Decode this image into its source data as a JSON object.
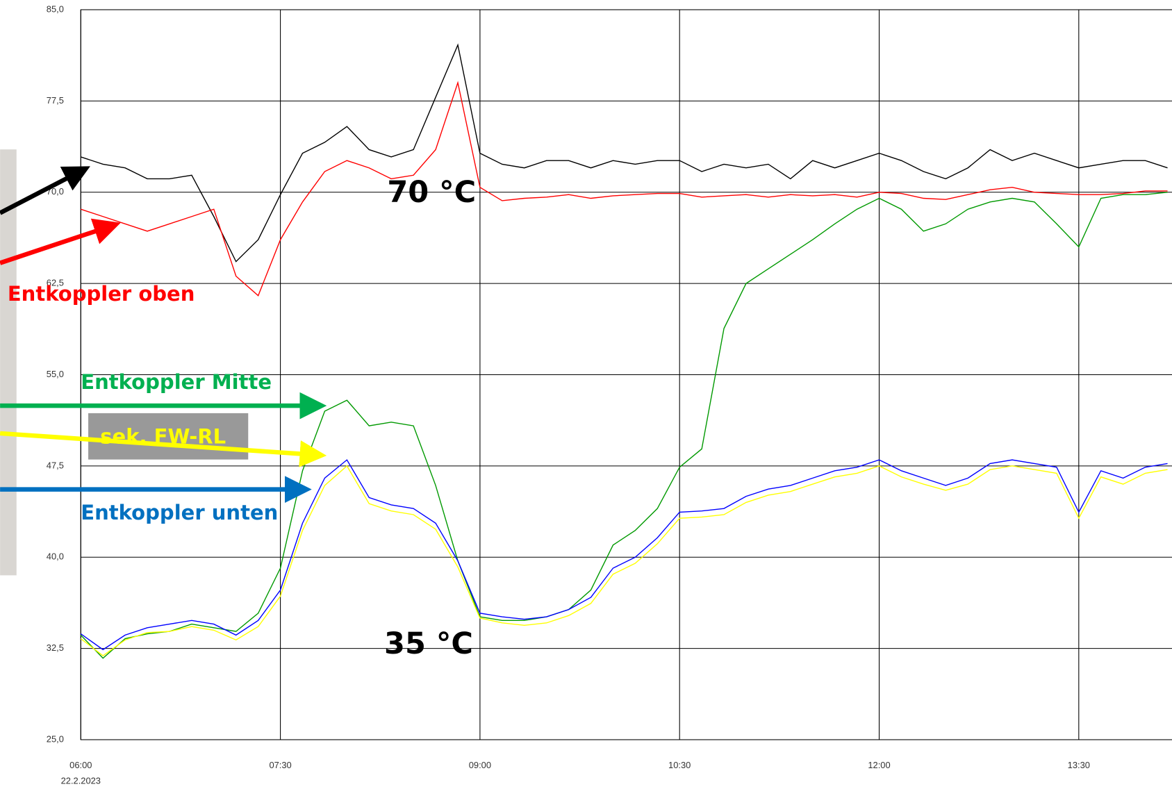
{
  "chart_data": {
    "type": "line",
    "x_date_label": "22.2.2023",
    "xlim": [
      "06:00",
      "14:12"
    ],
    "xticks": [
      "06:00",
      "07:30",
      "09:00",
      "10:30",
      "12:00",
      "13:30"
    ],
    "ylim": [
      25,
      85
    ],
    "yticks": [
      {
        "value": 25,
        "label": "25,0"
      },
      {
        "value": 32.5,
        "label": "32,5"
      },
      {
        "value": 40,
        "label": "40,0"
      },
      {
        "value": 47.5,
        "label": "47,5"
      },
      {
        "value": 55,
        "label": "55,0"
      },
      {
        "value": 62.5,
        "label": "62,5"
      },
      {
        "value": 70,
        "label": "70,0"
      },
      {
        "value": 77.5,
        "label": "77,5"
      },
      {
        "value": 85,
        "label": "85,0"
      }
    ],
    "grid": true,
    "x": [
      "06:00",
      "06:10",
      "06:20",
      "06:30",
      "06:40",
      "06:50",
      "07:00",
      "07:10",
      "07:20",
      "07:30",
      "07:40",
      "07:50",
      "08:00",
      "08:10",
      "08:20",
      "08:30",
      "08:40",
      "08:50",
      "09:00",
      "09:10",
      "09:20",
      "09:30",
      "09:40",
      "09:50",
      "10:00",
      "10:10",
      "10:20",
      "10:30",
      "10:40",
      "10:50",
      "11:00",
      "11:10",
      "11:20",
      "11:30",
      "11:40",
      "11:50",
      "12:00",
      "12:10",
      "12:20",
      "12:30",
      "12:40",
      "12:50",
      "13:00",
      "13:10",
      "13:20",
      "13:30",
      "13:40",
      "13:50",
      "14:00",
      "14:10"
    ],
    "series": [
      {
        "color": "#000000",
        "values": [
          72.9,
          72.3,
          72.0,
          71.1,
          71.1,
          71.4,
          68.0,
          64.3,
          66.1,
          69.8,
          73.2,
          74.1,
          75.4,
          73.5,
          72.9,
          73.5,
          77.8,
          82.1,
          73.2,
          72.3,
          72.0,
          72.6,
          72.6,
          72.0,
          72.6,
          72.3,
          72.6,
          72.6,
          71.7,
          72.3,
          72.0,
          72.3,
          71.1,
          72.6,
          72.0,
          72.6,
          73.2,
          72.6,
          71.7,
          71.1,
          72.0,
          73.5,
          72.6,
          73.2,
          72.6,
          72.0,
          72.3,
          72.6,
          72.6,
          72.0
        ]
      },
      {
        "name": "Entkoppler oben",
        "color": "#ff0000",
        "label_color": "#ff0000",
        "values": [
          68.6,
          68.0,
          67.4,
          66.8,
          67.4,
          68.0,
          68.6,
          63.1,
          61.5,
          66.1,
          69.2,
          71.7,
          72.6,
          72.0,
          71.1,
          71.4,
          73.5,
          79.0,
          70.4,
          69.3,
          69.5,
          69.6,
          69.8,
          69.5,
          69.7,
          69.8,
          69.9,
          69.9,
          69.6,
          69.7,
          69.8,
          69.6,
          69.8,
          69.7,
          69.8,
          69.6,
          70.0,
          69.9,
          69.5,
          69.4,
          69.8,
          70.2,
          70.4,
          70.0,
          69.9,
          69.8,
          69.8,
          69.9,
          70.1,
          70.1
        ]
      },
      {
        "name": "Entkoppler Mitte",
        "color": "#009900",
        "label_color": "#00b050",
        "values": [
          33.6,
          31.7,
          33.3,
          33.7,
          33.9,
          34.5,
          34.2,
          33.9,
          35.4,
          39.1,
          47.1,
          52.0,
          52.9,
          50.8,
          51.1,
          50.8,
          45.9,
          39.7,
          35.1,
          34.8,
          34.8,
          35.1,
          35.7,
          37.3,
          41.0,
          42.2,
          44.0,
          47.4,
          48.9,
          58.8,
          62.5,
          63.7,
          64.9,
          66.1,
          67.4,
          68.6,
          69.5,
          68.6,
          66.8,
          67.4,
          68.6,
          69.2,
          69.5,
          69.2,
          67.4,
          65.5,
          69.5,
          69.8,
          69.8,
          70.0
        ]
      },
      {
        "name": "sek. FW-RL",
        "color": "#ffff00",
        "label_color": "#ffff00",
        "values": [
          33.3,
          31.9,
          33.2,
          33.8,
          33.9,
          34.3,
          34.0,
          33.2,
          34.3,
          36.8,
          42.2,
          45.9,
          47.5,
          44.4,
          43.8,
          43.5,
          42.3,
          39.2,
          35.0,
          34.6,
          34.4,
          34.6,
          35.2,
          36.2,
          38.6,
          39.5,
          41.1,
          43.2,
          43.3,
          43.5,
          44.5,
          45.1,
          45.4,
          46.0,
          46.6,
          46.9,
          47.5,
          46.6,
          46.0,
          45.5,
          46.0,
          47.2,
          47.5,
          47.2,
          46.9,
          43.2,
          46.6,
          46.0,
          46.9,
          47.2
        ]
      },
      {
        "name": "Entkoppler unten",
        "color": "#0000ff",
        "label_color": "#0070c0",
        "values": [
          33.7,
          32.4,
          33.6,
          34.2,
          34.5,
          34.8,
          34.5,
          33.6,
          34.8,
          37.3,
          42.8,
          46.5,
          48.0,
          44.9,
          44.3,
          44.0,
          42.8,
          39.7,
          35.4,
          35.1,
          34.9,
          35.1,
          35.7,
          36.7,
          39.1,
          40.0,
          41.6,
          43.7,
          43.8,
          44.0,
          45.0,
          45.6,
          45.9,
          46.5,
          47.1,
          47.4,
          48.0,
          47.1,
          46.5,
          45.9,
          46.5,
          47.7,
          48.0,
          47.7,
          47.4,
          43.7,
          47.1,
          46.5,
          47.4,
          47.7
        ]
      }
    ],
    "annotations": [
      "70 °C",
      "35 °C"
    ]
  }
}
